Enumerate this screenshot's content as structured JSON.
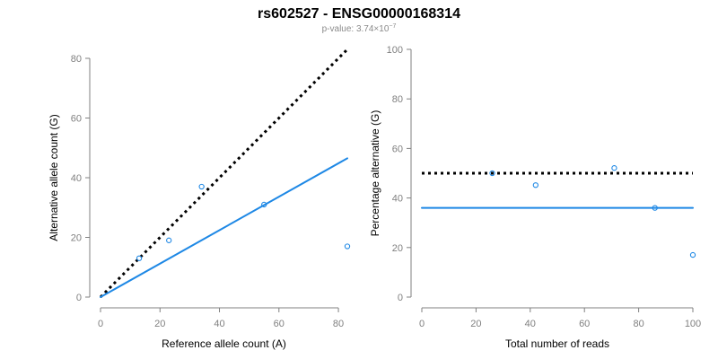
{
  "figure": {
    "title": "rs602527 - ENSG00000168314",
    "subtitle": {
      "prefix": "p-value: 3.74×10",
      "exponent": "−7"
    }
  },
  "chart_data": [
    {
      "type": "scatter",
      "xlabel": "Reference allele count (A)",
      "ylabel": "Alternative allele count (G)",
      "xlim": [
        0,
        83
      ],
      "ylim": [
        0,
        80
      ],
      "xticks": [
        0,
        20,
        40,
        60,
        80
      ],
      "yticks": [
        0,
        20,
        40,
        60,
        80
      ],
      "grid": false,
      "points": [
        {
          "x": 13,
          "y": 13
        },
        {
          "x": 23,
          "y": 19
        },
        {
          "x": 34,
          "y": 37
        },
        {
          "x": 55,
          "y": 31
        },
        {
          "x": 83,
          "y": 17
        }
      ],
      "lines": [
        {
          "style": "dotted",
          "color": "#000000",
          "from": [
            0,
            0
          ],
          "to": [
            83,
            83
          ]
        },
        {
          "style": "solid",
          "color": "#1e88e5",
          "from": [
            0,
            0
          ],
          "to": [
            83,
            46.5
          ]
        }
      ],
      "point_color": "#1e88e5"
    },
    {
      "type": "scatter",
      "xlabel": "Total number of reads",
      "ylabel": "Percentage alternative (G)",
      "xlim": [
        0,
        100
      ],
      "ylim": [
        0,
        100
      ],
      "xticks": [
        0,
        20,
        40,
        60,
        80,
        100
      ],
      "yticks": [
        0,
        20,
        40,
        60,
        80,
        100
      ],
      "grid": false,
      "points": [
        {
          "x": 26,
          "y": 50
        },
        {
          "x": 42,
          "y": 45.2
        },
        {
          "x": 71,
          "y": 52.1
        },
        {
          "x": 86,
          "y": 36
        },
        {
          "x": 100,
          "y": 17
        }
      ],
      "lines": [
        {
          "style": "dotted",
          "color": "#000000",
          "from": [
            0,
            50
          ],
          "to": [
            100,
            50
          ]
        },
        {
          "style": "solid",
          "color": "#1e88e5",
          "from": [
            0,
            36
          ],
          "to": [
            100,
            36
          ]
        }
      ],
      "point_color": "#1e88e5"
    }
  ]
}
